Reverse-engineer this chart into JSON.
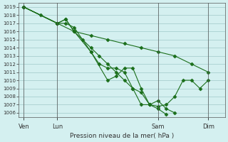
{
  "background_color": "#d4f0f0",
  "grid_color": "#a0c8c8",
  "line_color": "#1a6e1a",
  "marker_color": "#1a6e1a",
  "ylabel": "Pression niveau de la mer( hPa )",
  "ylim": [
    1006,
    1019
  ],
  "yticks": [
    1006,
    1007,
    1008,
    1009,
    1010,
    1011,
    1012,
    1013,
    1014,
    1015,
    1016,
    1017,
    1018,
    1019
  ],
  "xtick_labels": [
    "Ven",
    "Lun",
    "Sam",
    "Dim"
  ],
  "xtick_positions": [
    0,
    2,
    8,
    11
  ],
  "series": [
    [
      1019,
      1018,
      1017,
      1016,
      1015.5,
      1015,
      1014.5,
      1014,
      1013.5,
      1013,
      1012,
      1011
    ],
    [
      1019,
      1017,
      1017.5,
      1016,
      1014,
      1013,
      1012,
      1011,
      1010,
      1009,
      1008.5,
      1007,
      1007.5,
      1006.5,
      1006
    ],
    [
      1019,
      1017,
      1017,
      1016.5,
      1015,
      1013.5,
      1012,
      1011.5,
      1011.5,
      1011,
      1009,
      1007,
      1007,
      1006.5,
      1005.8
    ],
    [
      1019,
      1017,
      1017.5,
      1016,
      1013.5,
      1010,
      1010.5,
      1011.5,
      1011.5,
      1009,
      1007,
      1006.8,
      1007,
      1008,
      1010,
      1010,
      1009,
      1010
    ]
  ],
  "series_x": [
    [
      0,
      1,
      2,
      3,
      4,
      5,
      6,
      7,
      8,
      9,
      10,
      11
    ],
    [
      0,
      2,
      2.5,
      3,
      4,
      4.5,
      5,
      5.5,
      6,
      6.5,
      7,
      7.5,
      8,
      8.5,
      9
    ],
    [
      0,
      2,
      2.5,
      3,
      3.5,
      4,
      4.5,
      5,
      5.5,
      6,
      6.5,
      7,
      7.5,
      8,
      8.5
    ],
    [
      0,
      2,
      2.5,
      3,
      4,
      5,
      5.5,
      6,
      6.5,
      7,
      7.5,
      8,
      8.5,
      9,
      9.5,
      10,
      10.5,
      11
    ]
  ]
}
